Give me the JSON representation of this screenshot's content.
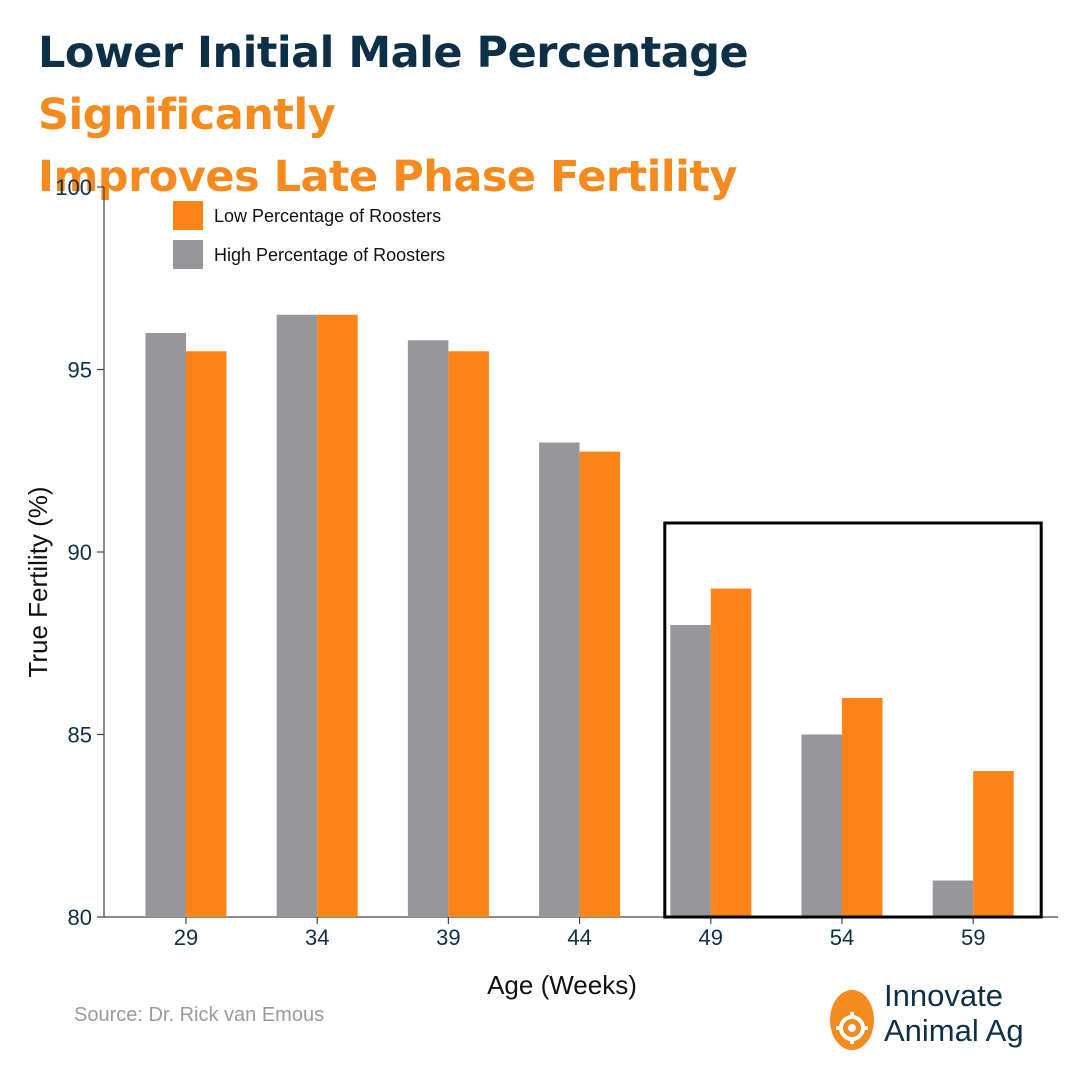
{
  "title": {
    "part1": "Lower Initial Male Percentage ",
    "part2": "Significantly",
    "part3": "Improves Late Phase Fertility"
  },
  "chart_data": {
    "type": "bar",
    "categories": [
      "29",
      "34",
      "39",
      "44",
      "49",
      "54",
      "59"
    ],
    "series": [
      {
        "name": "High Percentage of Roosters",
        "color": "#96969b",
        "values": [
          96.0,
          96.5,
          95.8,
          93.0,
          88.0,
          85.0,
          81.0
        ]
      },
      {
        "name": "Low Percentage of Roosters",
        "color": "#fd8418",
        "values": [
          95.5,
          96.5,
          95.5,
          92.75,
          89.0,
          86.0,
          84.0
        ]
      }
    ],
    "legend_order": [
      1,
      0
    ],
    "legend_position": "top-left",
    "xlabel": "Age (Weeks)",
    "ylabel": "True Fertility (%)",
    "ylim": [
      80,
      100
    ],
    "yticks": [
      "80",
      "85",
      "90",
      "95",
      "100"
    ],
    "grid": false,
    "highlight_categories": [
      "49",
      "54",
      "59"
    ]
  },
  "source": "Source: Dr. Rick van Emous",
  "logo": {
    "line1": "Innovate",
    "line2": "Animal Ag",
    "accent": "#f58a1f",
    "text_color": "#0d3047"
  }
}
